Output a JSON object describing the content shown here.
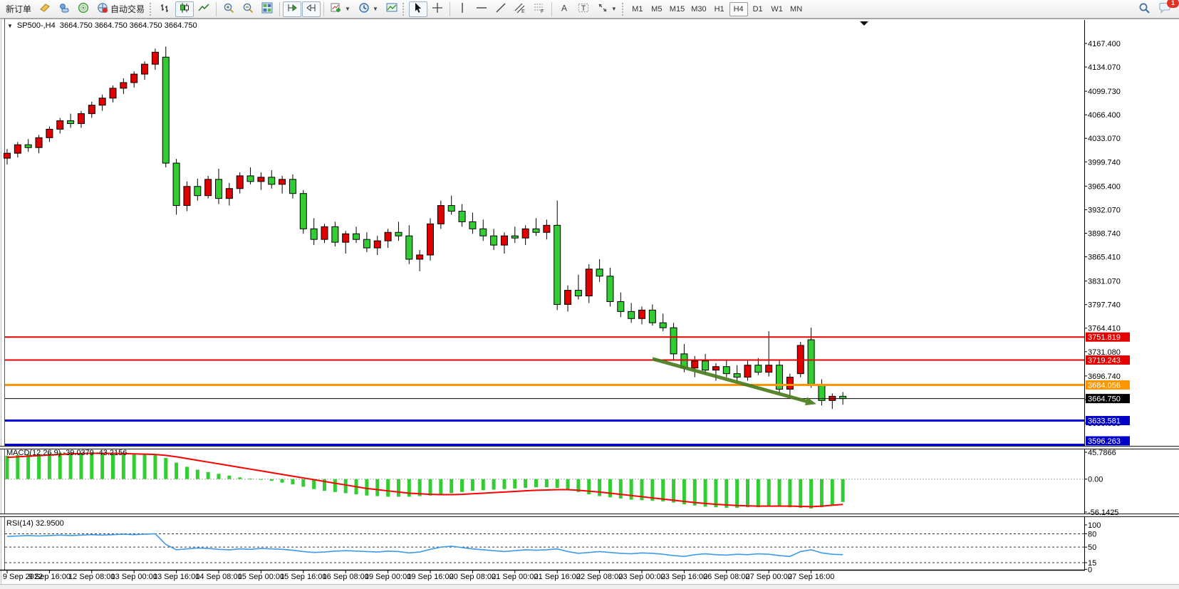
{
  "toolbar": {
    "new_order_label": "新订单",
    "autotrade_label": "自动交易",
    "timeframes": [
      "M1",
      "M5",
      "M15",
      "M30",
      "H1",
      "H4",
      "D1",
      "W1",
      "MN"
    ],
    "active_timeframe": "H4",
    "notification_count": "1"
  },
  "chart_header": {
    "symbol_period": "SP500-,H4",
    "open": "3664.750",
    "high": "3664.750",
    "low": "3664.750",
    "close": "3664.750"
  },
  "chart_data": [
    {
      "type": "candlestick",
      "title": "SP500-,H4",
      "up_color": "#e00000",
      "down_color": "#32cd32",
      "wick_color": "#000000",
      "y_ticks": [
        "4167.400",
        "4134.070",
        "4099.730",
        "4066.400",
        "4033.070",
        "3999.740",
        "3965.400",
        "3932.070",
        "3898.740",
        "3865.410",
        "3831.070",
        "3797.740",
        "3764.410",
        "3731.080",
        "3696.740",
        "3663.410",
        "3630.080"
      ],
      "x_labels": [
        "9 Sep 2022",
        "9 Sep 16:00",
        "12 Sep 08:00",
        "13 Sep 00:00",
        "13 Sep 16:00",
        "14 Sep 08:00",
        "15 Sep 00:00",
        "15 Sep 16:00",
        "16 Sep 08:00",
        "19 Sep 00:00",
        "19 Sep 16:00",
        "20 Sep 08:00",
        "21 Sep 00:00",
        "21 Sep 16:00",
        "22 Sep 08:00",
        "23 Sep 00:00",
        "23 Sep 16:00",
        "26 Sep 08:00",
        "27 Sep 00:00",
        "27 Sep 16:00"
      ],
      "candles": [
        [
          4005,
          4018,
          3996,
          4012
        ],
        [
          4012,
          4028,
          4006,
          4024
        ],
        [
          4024,
          4032,
          4014,
          4020
        ],
        [
          4020,
          4038,
          4012,
          4034
        ],
        [
          4034,
          4050,
          4028,
          4046
        ],
        [
          4046,
          4062,
          4040,
          4058
        ],
        [
          4058,
          4068,
          4048,
          4054
        ],
        [
          4054,
          4072,
          4048,
          4068
        ],
        [
          4068,
          4085,
          4062,
          4080
        ],
        [
          4080,
          4095,
          4072,
          4090
        ],
        [
          4090,
          4108,
          4084,
          4104
        ],
        [
          4104,
          4118,
          4096,
          4112
        ],
        [
          4112,
          4128,
          4105,
          4124
        ],
        [
          4124,
          4142,
          4116,
          4138
        ],
        [
          4138,
          4160,
          4130,
          4155
        ],
        [
          4148,
          4163,
          3992,
          3998
        ],
        [
          3998,
          4004,
          3925,
          3938
        ],
        [
          3938,
          3972,
          3930,
          3965
        ],
        [
          3965,
          3976,
          3945,
          3952
        ],
        [
          3952,
          3980,
          3948,
          3975
        ],
        [
          3975,
          3990,
          3940,
          3948
        ],
        [
          3948,
          3970,
          3938,
          3962
        ],
        [
          3962,
          3985,
          3955,
          3980
        ],
        [
          3980,
          3992,
          3968,
          3972
        ],
        [
          3972,
          3985,
          3960,
          3978
        ],
        [
          3978,
          3988,
          3962,
          3968
        ],
        [
          3968,
          3980,
          3955,
          3975
        ],
        [
          3975,
          3982,
          3948,
          3955
        ],
        [
          3955,
          3960,
          3898,
          3905
        ],
        [
          3905,
          3920,
          3882,
          3890
        ],
        [
          3890,
          3912,
          3885,
          3908
        ],
        [
          3908,
          3915,
          3880,
          3886
        ],
        [
          3886,
          3902,
          3870,
          3898
        ],
        [
          3898,
          3908,
          3885,
          3890
        ],
        [
          3890,
          3900,
          3872,
          3878
        ],
        [
          3878,
          3895,
          3868,
          3888
        ],
        [
          3888,
          3905,
          3878,
          3900
        ],
        [
          3900,
          3915,
          3888,
          3895
        ],
        [
          3895,
          3910,
          3855,
          3862
        ],
        [
          3862,
          3875,
          3845,
          3868
        ],
        [
          3868,
          3920,
          3860,
          3912
        ],
        [
          3912,
          3945,
          3905,
          3938
        ],
        [
          3938,
          3952,
          3925,
          3930
        ],
        [
          3930,
          3940,
          3908,
          3915
        ],
        [
          3915,
          3928,
          3898,
          3905
        ],
        [
          3905,
          3918,
          3888,
          3895
        ],
        [
          3895,
          3905,
          3875,
          3882
        ],
        [
          3882,
          3900,
          3870,
          3895
        ],
        [
          3895,
          3908,
          3885,
          3892
        ],
        [
          3892,
          3910,
          3882,
          3905
        ],
        [
          3905,
          3920,
          3895,
          3900
        ],
        [
          3900,
          3918,
          3890,
          3910
        ],
        [
          3910,
          3945,
          3790,
          3798
        ],
        [
          3798,
          3825,
          3788,
          3818
        ],
        [
          3818,
          3840,
          3805,
          3810
        ],
        [
          3810,
          3855,
          3800,
          3848
        ],
        [
          3848,
          3862,
          3830,
          3838
        ],
        [
          3838,
          3850,
          3795,
          3802
        ],
        [
          3802,
          3815,
          3780,
          3788
        ],
        [
          3788,
          3800,
          3772,
          3778
        ],
        [
          3778,
          3795,
          3770,
          3790
        ],
        [
          3790,
          3798,
          3768,
          3772
        ],
        [
          3772,
          3785,
          3760,
          3765
        ],
        [
          3765,
          3772,
          3720,
          3728
        ],
        [
          3728,
          3742,
          3702,
          3708
        ],
        [
          3708,
          3725,
          3695,
          3718
        ],
        [
          3718,
          3728,
          3700,
          3705
        ],
        [
          3705,
          3715,
          3690,
          3710
        ],
        [
          3710,
          3720,
          3695,
          3700
        ],
        [
          3700,
          3712,
          3688,
          3695
        ],
        [
          3695,
          3718,
          3690,
          3712
        ],
        [
          3712,
          3722,
          3698,
          3702
        ],
        [
          3702,
          3760,
          3696,
          3712
        ],
        [
          3712,
          3720,
          3672,
          3678
        ],
        [
          3678,
          3700,
          3668,
          3695
        ],
        [
          3700,
          3745,
          3695,
          3740
        ],
        [
          3748,
          3765,
          3680,
          3685
        ],
        [
          3685,
          3692,
          3655,
          3662
        ],
        [
          3662,
          3672,
          3650,
          3668
        ],
        [
          3668,
          3674,
          3656,
          3664.75
        ]
      ],
      "price_lines": [
        {
          "price": 3751.819,
          "label": "3751.819",
          "color": "#e50000",
          "label_bg": "#e50000",
          "width": 2
        },
        {
          "price": 3719.243,
          "label": "3719.243",
          "color": "#e50000",
          "label_bg": "#e50000",
          "width": 2
        },
        {
          "price": 3684.056,
          "label": "3684.056",
          "color": "#ff9500",
          "label_bg": "#ff9500",
          "width": 3
        },
        {
          "price": 3664.75,
          "label": "3664.750",
          "color": "#000000",
          "label_bg": "#000000",
          "width": 1
        },
        {
          "price": 3633.581,
          "label": "3633.581",
          "color": "#0000e0",
          "label_bg": "#0000c8",
          "width": 3
        },
        {
          "price": 3596.263,
          "label": "3596.263",
          "color": "#0000e0",
          "label_bg": "#0000c8",
          "width": 3
        }
      ],
      "arrow": {
        "from_bar": 61,
        "from_price": 3721,
        "to_bar": 76.5,
        "to_price": 3657,
        "color": "#4c7d1f",
        "width": 5
      }
    },
    {
      "type": "macd",
      "label": "MACD(12,26,9)",
      "values": "-39.0379 -43.2156",
      "y_ticks": [
        "45.7866",
        "0.00",
        "-56.1425"
      ],
      "y_tick_values": [
        45.7866,
        0,
        -56.1425
      ],
      "hist_color": "#32cd32",
      "signal_color": "#ff0000",
      "histogram": [
        40,
        41,
        42,
        43,
        44,
        45,
        45.5,
        45,
        44.5,
        44,
        43.5,
        43,
        42.5,
        42,
        41,
        36,
        28,
        21,
        16,
        12,
        9,
        6,
        3,
        1,
        -1,
        -3,
        -6,
        -9,
        -13,
        -17,
        -20,
        -22,
        -24,
        -26,
        -28,
        -29,
        -30,
        -30,
        -30,
        -29,
        -28,
        -26,
        -24,
        -22,
        -20,
        -19,
        -18,
        -17,
        -16,
        -15,
        -14,
        -14,
        -15,
        -18,
        -22,
        -26,
        -29,
        -31,
        -33,
        -35,
        -36,
        -37,
        -38,
        -40,
        -43,
        -45,
        -47,
        -48,
        -49,
        -49,
        -48,
        -48,
        -47,
        -47,
        -48,
        -49,
        -50,
        -48,
        -44,
        -39
      ],
      "signal": [
        37,
        38,
        39,
        40,
        41,
        42,
        43,
        43.5,
        44,
        44,
        44,
        43.5,
        43,
        42.5,
        42,
        40.5,
        38,
        35,
        32,
        29,
        26,
        23,
        20,
        17,
        14,
        11,
        8,
        5,
        2,
        -1,
        -4,
        -7,
        -10,
        -13,
        -16,
        -18,
        -20,
        -22,
        -24,
        -25,
        -26,
        -26.5,
        -26.5,
        -26,
        -25,
        -24,
        -23,
        -22,
        -21,
        -20,
        -19,
        -18.5,
        -18,
        -18,
        -19,
        -20.5,
        -22,
        -24,
        -26,
        -28,
        -30,
        -32,
        -34,
        -36,
        -38,
        -40,
        -41.5,
        -43,
        -44,
        -45,
        -45.5,
        -46,
        -46,
        -46,
        -46,
        -46.5,
        -47,
        -46,
        -44.5,
        -43.2
      ]
    },
    {
      "type": "rsi",
      "label": "RSI(14)",
      "value": "32.9500",
      "y_ticks": [
        "100",
        "80",
        "50",
        "15",
        "0"
      ],
      "y_tick_values": [
        100,
        80,
        50,
        15,
        0
      ],
      "levels": [
        80,
        50,
        15
      ],
      "line_color": "#3d9be9",
      "values": [
        74,
        75,
        76,
        75,
        76,
        77,
        76,
        77,
        78,
        77,
        78,
        79,
        78,
        79,
        80,
        56,
        44,
        46,
        48,
        47,
        45,
        44,
        46,
        45,
        47,
        46,
        45,
        43,
        40,
        38,
        39,
        41,
        42,
        41,
        40,
        39,
        41,
        40,
        37,
        39,
        45,
        50,
        52,
        49,
        46,
        44,
        42,
        40,
        42,
        44,
        43,
        44,
        46,
        40,
        36,
        38,
        40,
        38,
        36,
        35,
        37,
        36,
        34,
        31,
        29,
        33,
        35,
        33,
        32,
        34,
        33,
        35,
        34,
        31,
        29,
        40,
        44,
        37,
        34,
        32.95
      ]
    }
  ]
}
